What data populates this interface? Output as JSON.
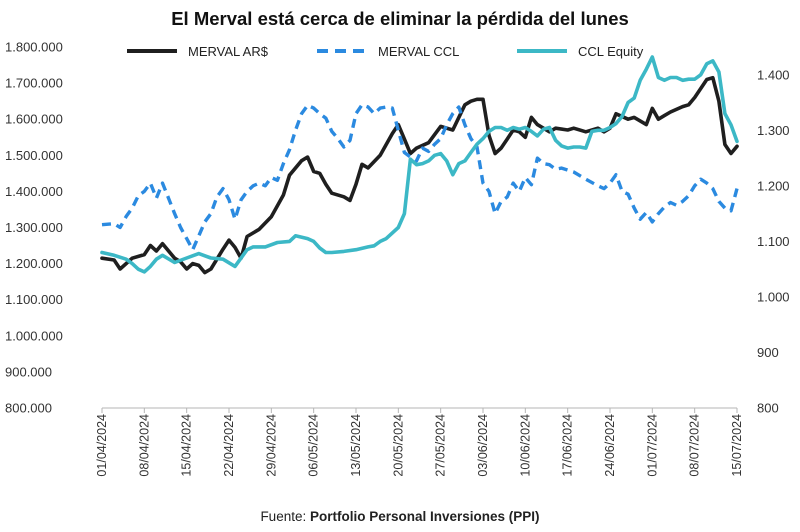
{
  "chart_data": {
    "type": "line",
    "title": "El Merval está cerca de eliminar la pérdida del lunes",
    "source_prefix": "Fuente:",
    "source_name": "Portfolio Personal Inversiones (PPI)",
    "y_left": {
      "min": 800000,
      "max": 1800000,
      "ticks": [
        {
          "v": 800000,
          "label": "800.000"
        },
        {
          "v": 900000,
          "label": "900.000"
        },
        {
          "v": 1000000,
          "label": "1.000.000"
        },
        {
          "v": 1100000,
          "label": "1.100.000"
        },
        {
          "v": 1200000,
          "label": "1.200.000"
        },
        {
          "v": 1300000,
          "label": "1.300.000"
        },
        {
          "v": 1400000,
          "label": "1.400.000"
        },
        {
          "v": 1500000,
          "label": "1.500.000"
        },
        {
          "v": 1600000,
          "label": "1.600.000"
        },
        {
          "v": 1700000,
          "label": "1.700.000"
        },
        {
          "v": 1800000,
          "label": "1.800.000"
        }
      ]
    },
    "y_right": {
      "min": 800,
      "max": 1450,
      "ticks": [
        {
          "v": 800,
          "label": "800"
        },
        {
          "v": 900,
          "label": "900"
        },
        {
          "v": 1000,
          "label": "1.000"
        },
        {
          "v": 1100,
          "label": "1.100"
        },
        {
          "v": 1200,
          "label": "1.200"
        },
        {
          "v": 1300,
          "label": "1.300"
        },
        {
          "v": 1400,
          "label": "1.400"
        }
      ]
    },
    "x": {
      "min": 0,
      "max": 105,
      "ticks": [
        {
          "v": 0,
          "label": "01/04/2024"
        },
        {
          "v": 7,
          "label": "08/04/2024"
        },
        {
          "v": 14,
          "label": "15/04/2024"
        },
        {
          "v": 21,
          "label": "22/04/2024"
        },
        {
          "v": 28,
          "label": "29/04/2024"
        },
        {
          "v": 35,
          "label": "06/05/2024"
        },
        {
          "v": 42,
          "label": "13/05/2024"
        },
        {
          "v": 49,
          "label": "20/05/2024"
        },
        {
          "v": 56,
          "label": "27/05/2024"
        },
        {
          "v": 63,
          "label": "03/06/2024"
        },
        {
          "v": 70,
          "label": "10/06/2024"
        },
        {
          "v": 77,
          "label": "17/06/2024"
        },
        {
          "v": 84,
          "label": "24/06/2024"
        },
        {
          "v": 91,
          "label": "01/07/2024"
        },
        {
          "v": 98,
          "label": "08/07/2024"
        },
        {
          "v": 105,
          "label": "15/07/2024"
        }
      ]
    },
    "series": [
      {
        "name": "MERVAL AR$",
        "axis": "left",
        "color": "#1f1f1f",
        "style": "solid",
        "points": [
          [
            0,
            1215000
          ],
          [
            2,
            1210000
          ],
          [
            3,
            1185000
          ],
          [
            5,
            1215000
          ],
          [
            7,
            1225000
          ],
          [
            8,
            1250000
          ],
          [
            9,
            1235000
          ],
          [
            10,
            1255000
          ],
          [
            12,
            1215000
          ],
          [
            13,
            1205000
          ],
          [
            14,
            1185000
          ],
          [
            15,
            1200000
          ],
          [
            16,
            1195000
          ],
          [
            17,
            1175000
          ],
          [
            18,
            1185000
          ],
          [
            20,
            1240000
          ],
          [
            21,
            1265000
          ],
          [
            22,
            1245000
          ],
          [
            23,
            1215000
          ],
          [
            24,
            1275000
          ],
          [
            26,
            1295000
          ],
          [
            28,
            1330000
          ],
          [
            30,
            1390000
          ],
          [
            31,
            1445000
          ],
          [
            33,
            1485000
          ],
          [
            34,
            1495000
          ],
          [
            35,
            1455000
          ],
          [
            36,
            1450000
          ],
          [
            37,
            1420000
          ],
          [
            38,
            1395000
          ],
          [
            40,
            1385000
          ],
          [
            41,
            1375000
          ],
          [
            42,
            1420000
          ],
          [
            43,
            1475000
          ],
          [
            44,
            1465000
          ],
          [
            46,
            1500000
          ],
          [
            48,
            1560000
          ],
          [
            49,
            1585000
          ],
          [
            50,
            1545000
          ],
          [
            51,
            1505000
          ],
          [
            52,
            1520000
          ],
          [
            54,
            1535000
          ],
          [
            56,
            1580000
          ],
          [
            58,
            1570000
          ],
          [
            60,
            1640000
          ],
          [
            61,
            1650000
          ],
          [
            62,
            1655000
          ],
          [
            63,
            1655000
          ],
          [
            64,
            1555000
          ],
          [
            65,
            1505000
          ],
          [
            66,
            1520000
          ],
          [
            67,
            1545000
          ],
          [
            68,
            1570000
          ],
          [
            69,
            1565000
          ],
          [
            70,
            1550000
          ],
          [
            71,
            1605000
          ],
          [
            72,
            1585000
          ],
          [
            74,
            1565000
          ],
          [
            75,
            1575000
          ],
          [
            77,
            1570000
          ],
          [
            78,
            1575000
          ],
          [
            80,
            1565000
          ],
          [
            82,
            1575000
          ],
          [
            83,
            1565000
          ],
          [
            84,
            1575000
          ],
          [
            85,
            1615000
          ],
          [
            87,
            1600000
          ],
          [
            88,
            1605000
          ],
          [
            90,
            1585000
          ],
          [
            91,
            1630000
          ],
          [
            92,
            1600000
          ],
          [
            93,
            1610000
          ],
          [
            94,
            1620000
          ],
          [
            96,
            1635000
          ],
          [
            97,
            1640000
          ],
          [
            98,
            1660000
          ],
          [
            100,
            1710000
          ],
          [
            101,
            1715000
          ],
          [
            102,
            1650000
          ],
          [
            103,
            1530000
          ],
          [
            104,
            1505000
          ],
          [
            105,
            1525000
          ]
        ]
      },
      {
        "name": "MERVAL CCL",
        "axis": "right",
        "color": "#2b8ae0",
        "style": "dashed",
        "points": [
          [
            0,
            1130
          ],
          [
            2,
            1132
          ],
          [
            3,
            1125
          ],
          [
            4,
            1145
          ],
          [
            5,
            1160
          ],
          [
            6,
            1182
          ],
          [
            7,
            1190
          ],
          [
            8,
            1205
          ],
          [
            9,
            1178
          ],
          [
            10,
            1205
          ],
          [
            11,
            1178
          ],
          [
            12,
            1150
          ],
          [
            13,
            1125
          ],
          [
            14,
            1105
          ],
          [
            15,
            1085
          ],
          [
            16,
            1110
          ],
          [
            17,
            1135
          ],
          [
            18,
            1150
          ],
          [
            19,
            1180
          ],
          [
            20,
            1195
          ],
          [
            21,
            1175
          ],
          [
            22,
            1140
          ],
          [
            23,
            1175
          ],
          [
            24,
            1190
          ],
          [
            25,
            1200
          ],
          [
            26,
            1205
          ],
          [
            27,
            1200
          ],
          [
            28,
            1215
          ],
          [
            29,
            1210
          ],
          [
            30,
            1240
          ],
          [
            31,
            1265
          ],
          [
            32,
            1300
          ],
          [
            33,
            1330
          ],
          [
            34,
            1345
          ],
          [
            35,
            1340
          ],
          [
            36,
            1330
          ],
          [
            37,
            1322
          ],
          [
            38,
            1298
          ],
          [
            39,
            1285
          ],
          [
            40,
            1270
          ],
          [
            41,
            1282
          ],
          [
            42,
            1330
          ],
          [
            43,
            1346
          ],
          [
            44,
            1342
          ],
          [
            45,
            1330
          ],
          [
            46,
            1340
          ],
          [
            47,
            1342
          ],
          [
            48,
            1340
          ],
          [
            49,
            1300
          ],
          [
            50,
            1260
          ],
          [
            51,
            1252
          ],
          [
            52,
            1245
          ],
          [
            53,
            1268
          ],
          [
            54,
            1262
          ],
          [
            55,
            1275
          ],
          [
            56,
            1285
          ],
          [
            57,
            1310
          ],
          [
            58,
            1330
          ],
          [
            59,
            1342
          ],
          [
            60,
            1310
          ],
          [
            61,
            1285
          ],
          [
            62,
            1270
          ],
          [
            63,
            1205
          ],
          [
            64,
            1190
          ],
          [
            65,
            1150
          ],
          [
            66,
            1172
          ],
          [
            67,
            1180
          ],
          [
            68,
            1205
          ],
          [
            69,
            1190
          ],
          [
            70,
            1215
          ],
          [
            71,
            1202
          ],
          [
            72,
            1250
          ],
          [
            73,
            1240
          ],
          [
            74,
            1238
          ],
          [
            75,
            1230
          ],
          [
            76,
            1232
          ],
          [
            78,
            1225
          ],
          [
            80,
            1212
          ],
          [
            82,
            1200
          ],
          [
            83,
            1195
          ],
          [
            84,
            1205
          ],
          [
            85,
            1220
          ],
          [
            86,
            1190
          ],
          [
            87,
            1185
          ],
          [
            88,
            1160
          ],
          [
            89,
            1140
          ],
          [
            90,
            1152
          ],
          [
            91,
            1135
          ],
          [
            92,
            1150
          ],
          [
            93,
            1162
          ],
          [
            94,
            1170
          ],
          [
            95,
            1165
          ],
          [
            96,
            1172
          ],
          [
            97,
            1182
          ],
          [
            98,
            1200
          ],
          [
            99,
            1212
          ],
          [
            100,
            1205
          ],
          [
            101,
            1195
          ],
          [
            102,
            1172
          ],
          [
            103,
            1160
          ],
          [
            104,
            1155
          ],
          [
            105,
            1195
          ]
        ]
      },
      {
        "name": "CCL Equity",
        "axis": "right",
        "color": "#3cb8c6",
        "style": "solid",
        "points": [
          [
            0,
            1080
          ],
          [
            2,
            1075
          ],
          [
            4,
            1068
          ],
          [
            5,
            1060
          ],
          [
            6,
            1050
          ],
          [
            7,
            1045
          ],
          [
            8,
            1055
          ],
          [
            9,
            1068
          ],
          [
            10,
            1075
          ],
          [
            12,
            1062
          ],
          [
            14,
            1070
          ],
          [
            16,
            1078
          ],
          [
            18,
            1070
          ],
          [
            20,
            1068
          ],
          [
            22,
            1055
          ],
          [
            24,
            1085
          ],
          [
            25,
            1090
          ],
          [
            27,
            1090
          ],
          [
            29,
            1098
          ],
          [
            31,
            1100
          ],
          [
            32,
            1110
          ],
          [
            34,
            1105
          ],
          [
            35,
            1100
          ],
          [
            36,
            1088
          ],
          [
            37,
            1080
          ],
          [
            38,
            1080
          ],
          [
            40,
            1082
          ],
          [
            42,
            1085
          ],
          [
            44,
            1090
          ],
          [
            45,
            1092
          ],
          [
            46,
            1100
          ],
          [
            47,
            1105
          ],
          [
            49,
            1125
          ],
          [
            50,
            1150
          ],
          [
            51,
            1248
          ],
          [
            52,
            1238
          ],
          [
            53,
            1240
          ],
          [
            54,
            1245
          ],
          [
            55,
            1255
          ],
          [
            56,
            1258
          ],
          [
            57,
            1245
          ],
          [
            58,
            1220
          ],
          [
            59,
            1240
          ],
          [
            60,
            1245
          ],
          [
            61,
            1260
          ],
          [
            62,
            1275
          ],
          [
            63,
            1285
          ],
          [
            64,
            1298
          ],
          [
            65,
            1305
          ],
          [
            66,
            1305
          ],
          [
            67,
            1300
          ],
          [
            68,
            1305
          ],
          [
            69,
            1302
          ],
          [
            70,
            1305
          ],
          [
            71,
            1298
          ],
          [
            72,
            1290
          ],
          [
            73,
            1302
          ],
          [
            74,
            1305
          ],
          [
            75,
            1282
          ],
          [
            76,
            1272
          ],
          [
            77,
            1268
          ],
          [
            78,
            1270
          ],
          [
            79,
            1270
          ],
          [
            80,
            1268
          ],
          [
            81,
            1298
          ],
          [
            82,
            1300
          ],
          [
            83,
            1300
          ],
          [
            84,
            1305
          ],
          [
            85,
            1312
          ],
          [
            86,
            1325
          ],
          [
            87,
            1350
          ],
          [
            88,
            1358
          ],
          [
            89,
            1390
          ],
          [
            90,
            1410
          ],
          [
            91,
            1432
          ],
          [
            92,
            1395
          ],
          [
            93,
            1390
          ],
          [
            94,
            1395
          ],
          [
            95,
            1395
          ],
          [
            96,
            1390
          ],
          [
            97,
            1392
          ],
          [
            98,
            1392
          ],
          [
            99,
            1400
          ],
          [
            100,
            1420
          ],
          [
            101,
            1425
          ],
          [
            102,
            1405
          ],
          [
            103,
            1330
          ],
          [
            104,
            1310
          ],
          [
            105,
            1280
          ]
        ]
      }
    ]
  }
}
